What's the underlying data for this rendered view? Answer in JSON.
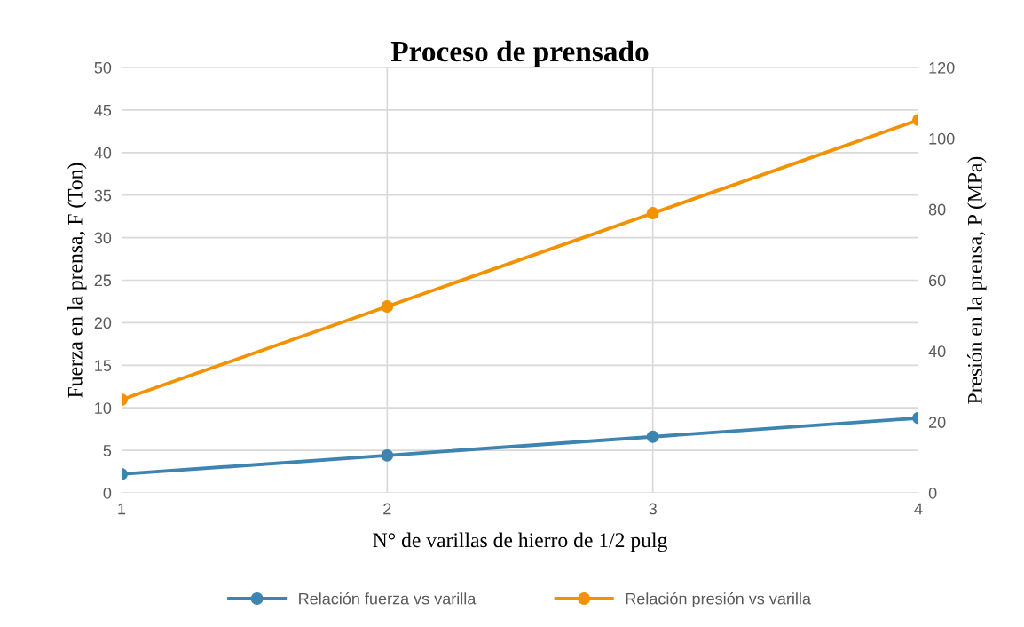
{
  "chart_data": {
    "type": "line",
    "title": "Proceso de prensado",
    "xlabel": "N° de varillas de hierro de 1/2 pulg",
    "ylabel": "Fuerza en la prensa, F (Ton)",
    "y2label": "Presión en la prensa, P (MPa)",
    "x": [
      1,
      2,
      3,
      4
    ],
    "series": [
      {
        "name": "Relación fuerza vs varilla",
        "color": "#3d85b0",
        "values": [
          2.2,
          4.4,
          6.6,
          8.8
        ]
      },
      {
        "name": "Relación presión vs varilla",
        "color": "#f29200",
        "axis": "y2",
        "values": [
          26.3,
          52.6,
          78.9,
          105.2
        ]
      }
    ],
    "xlim": [
      1,
      4
    ],
    "xticks": [
      1,
      2,
      3,
      4
    ],
    "ylim": [
      0,
      50
    ],
    "yticks": [
      0,
      5,
      10,
      15,
      20,
      25,
      30,
      35,
      40,
      45,
      50
    ],
    "y2lim": [
      0,
      120
    ],
    "y2ticks": [
      0,
      20,
      40,
      60,
      80,
      100,
      120
    ],
    "grid": true,
    "legend": "bottom",
    "marker": "circle",
    "line_style": "solid"
  }
}
